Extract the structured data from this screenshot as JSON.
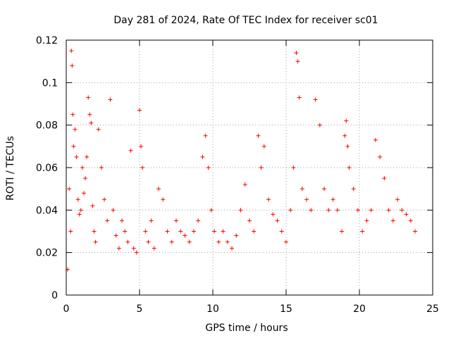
{
  "chart_data": {
    "type": "scatter",
    "title": "Day 281 of 2024, Rate Of TEC Index for receiver sc01",
    "xlabel": "GPS time / hours",
    "ylabel": "ROTI / TECUs",
    "xlim": [
      0,
      25
    ],
    "ylim": [
      0,
      0.12
    ],
    "grid": true,
    "marker": "+",
    "marker_color": "#ff0000",
    "xticks": [
      0,
      5,
      10,
      15,
      20,
      25
    ],
    "xtick_labels": [
      "0",
      "5",
      "10",
      "15",
      "20",
      "25"
    ],
    "yticks": [
      0,
      0.02,
      0.04,
      0.06,
      0.08,
      0.1,
      0.12
    ],
    "ytick_labels": [
      "0",
      "0.02",
      "0.04",
      "0.06",
      "0.08",
      "0.1",
      "0.12"
    ],
    "series": [
      {
        "name": "sc01",
        "x": [
          0.1,
          0.2,
          0.3,
          0.35,
          0.4,
          0.45,
          0.5,
          0.6,
          0.7,
          0.8,
          0.9,
          1.0,
          1.1,
          1.2,
          1.3,
          1.4,
          1.5,
          1.6,
          1.7,
          1.8,
          1.9,
          2.0,
          2.2,
          2.4,
          2.6,
          2.8,
          3.0,
          3.2,
          3.4,
          3.6,
          3.8,
          4.0,
          4.2,
          4.4,
          4.6,
          4.8,
          5.0,
          5.1,
          5.2,
          5.4,
          5.6,
          5.8,
          6.0,
          6.3,
          6.6,
          6.9,
          7.2,
          7.5,
          7.8,
          8.1,
          8.4,
          8.7,
          9.0,
          9.3,
          9.5,
          9.7,
          9.9,
          10.1,
          10.4,
          10.7,
          11.0,
          11.3,
          11.6,
          11.9,
          12.2,
          12.5,
          12.8,
          13.1,
          13.3,
          13.5,
          13.8,
          14.1,
          14.4,
          14.7,
          15.0,
          15.3,
          15.5,
          15.7,
          15.8,
          15.9,
          16.1,
          16.4,
          16.7,
          17.0,
          17.3,
          17.6,
          17.9,
          18.2,
          18.5,
          18.8,
          19.0,
          19.1,
          19.2,
          19.3,
          19.6,
          19.9,
          20.2,
          20.5,
          20.8,
          21.1,
          21.4,
          21.7,
          22.0,
          22.3,
          22.6,
          22.9,
          23.2,
          23.5,
          23.8
        ],
        "y": [
          0.012,
          0.05,
          0.03,
          0.115,
          0.108,
          0.085,
          0.07,
          0.078,
          0.065,
          0.045,
          0.038,
          0.04,
          0.06,
          0.048,
          0.055,
          0.065,
          0.093,
          0.085,
          0.081,
          0.042,
          0.03,
          0.025,
          0.078,
          0.06,
          0.045,
          0.035,
          0.092,
          0.04,
          0.028,
          0.022,
          0.035,
          0.03,
          0.025,
          0.068,
          0.022,
          0.02,
          0.087,
          0.07,
          0.06,
          0.03,
          0.025,
          0.035,
          0.022,
          0.05,
          0.045,
          0.03,
          0.025,
          0.035,
          0.03,
          0.028,
          0.025,
          0.03,
          0.035,
          0.065,
          0.075,
          0.06,
          0.04,
          0.03,
          0.025,
          0.03,
          0.025,
          0.022,
          0.028,
          0.04,
          0.052,
          0.035,
          0.03,
          0.075,
          0.06,
          0.07,
          0.045,
          0.038,
          0.035,
          0.03,
          0.025,
          0.04,
          0.06,
          0.114,
          0.11,
          0.093,
          0.05,
          0.045,
          0.04,
          0.092,
          0.08,
          0.05,
          0.04,
          0.045,
          0.04,
          0.03,
          0.075,
          0.082,
          0.07,
          0.06,
          0.05,
          0.04,
          0.03,
          0.035,
          0.04,
          0.073,
          0.065,
          0.055,
          0.04,
          0.035,
          0.045,
          0.04,
          0.038,
          0.035,
          0.03
        ]
      }
    ]
  }
}
